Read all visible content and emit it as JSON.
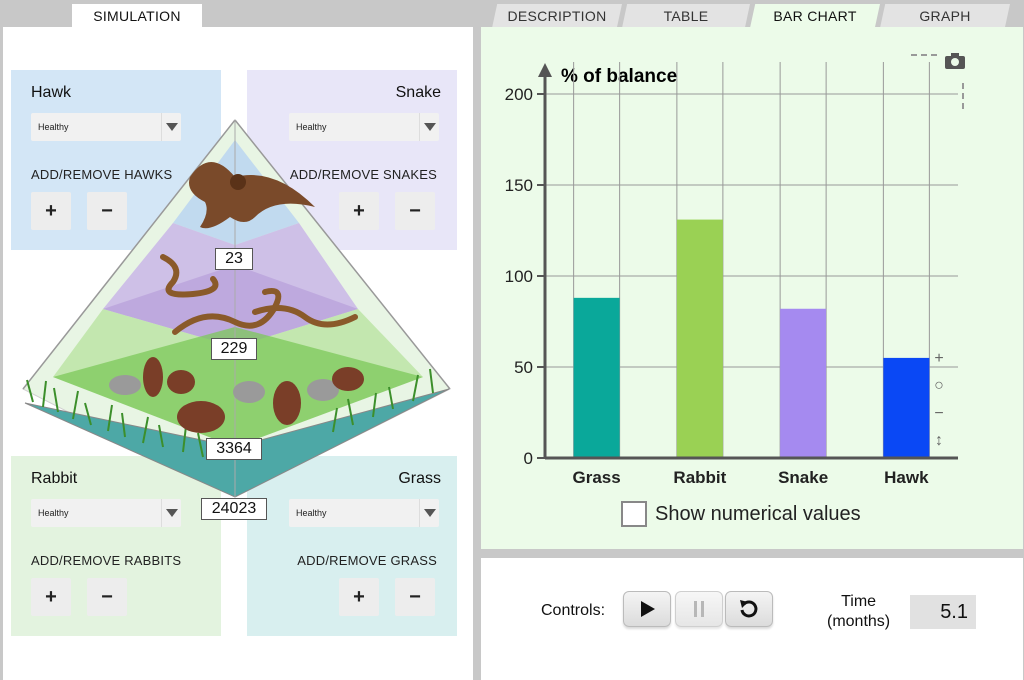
{
  "tabs": {
    "simulation": "SIMULATION",
    "right": [
      "DESCRIPTION",
      "TABLE",
      "BAR CHART",
      "GRAPH"
    ],
    "active_right": "BAR CHART"
  },
  "organisms": {
    "hawk": {
      "title": "Hawk",
      "status": "Healthy",
      "action_label": "ADD/REMOVE HAWKS"
    },
    "snake": {
      "title": "Snake",
      "status": "Healthy",
      "action_label": "ADD/REMOVE SNAKES"
    },
    "rabbit": {
      "title": "Rabbit",
      "status": "Healthy",
      "action_label": "ADD/REMOVE RABBITS"
    },
    "grass": {
      "title": "Grass",
      "status": "Healthy",
      "action_label": "ADD/REMOVE GRASS"
    }
  },
  "buttons": {
    "plus": "+",
    "minus": "−"
  },
  "populations": {
    "hawk": "23",
    "snake": "229",
    "rabbit": "3364",
    "grass": "24023"
  },
  "chart_data": {
    "type": "bar",
    "title": "% of balance",
    "categories": [
      "Grass",
      "Rabbit",
      "Snake",
      "Hawk"
    ],
    "values": [
      88,
      131,
      82,
      55
    ],
    "colors": [
      "#0aa89a",
      "#9ad154",
      "#a58af0",
      "#0a48f5"
    ],
    "ylim": [
      0,
      200
    ],
    "yticks": [
      0,
      50,
      100,
      150,
      200
    ],
    "grid": true
  },
  "zoom": {
    "plus": "+",
    "reset": "○",
    "minus": "−",
    "resize": "↕"
  },
  "checkbox": {
    "label": "Show numerical values",
    "checked": false
  },
  "controls": {
    "label": "Controls:",
    "time_label_1": "Time",
    "time_label_2": "(months)",
    "time_value": "5.1"
  }
}
